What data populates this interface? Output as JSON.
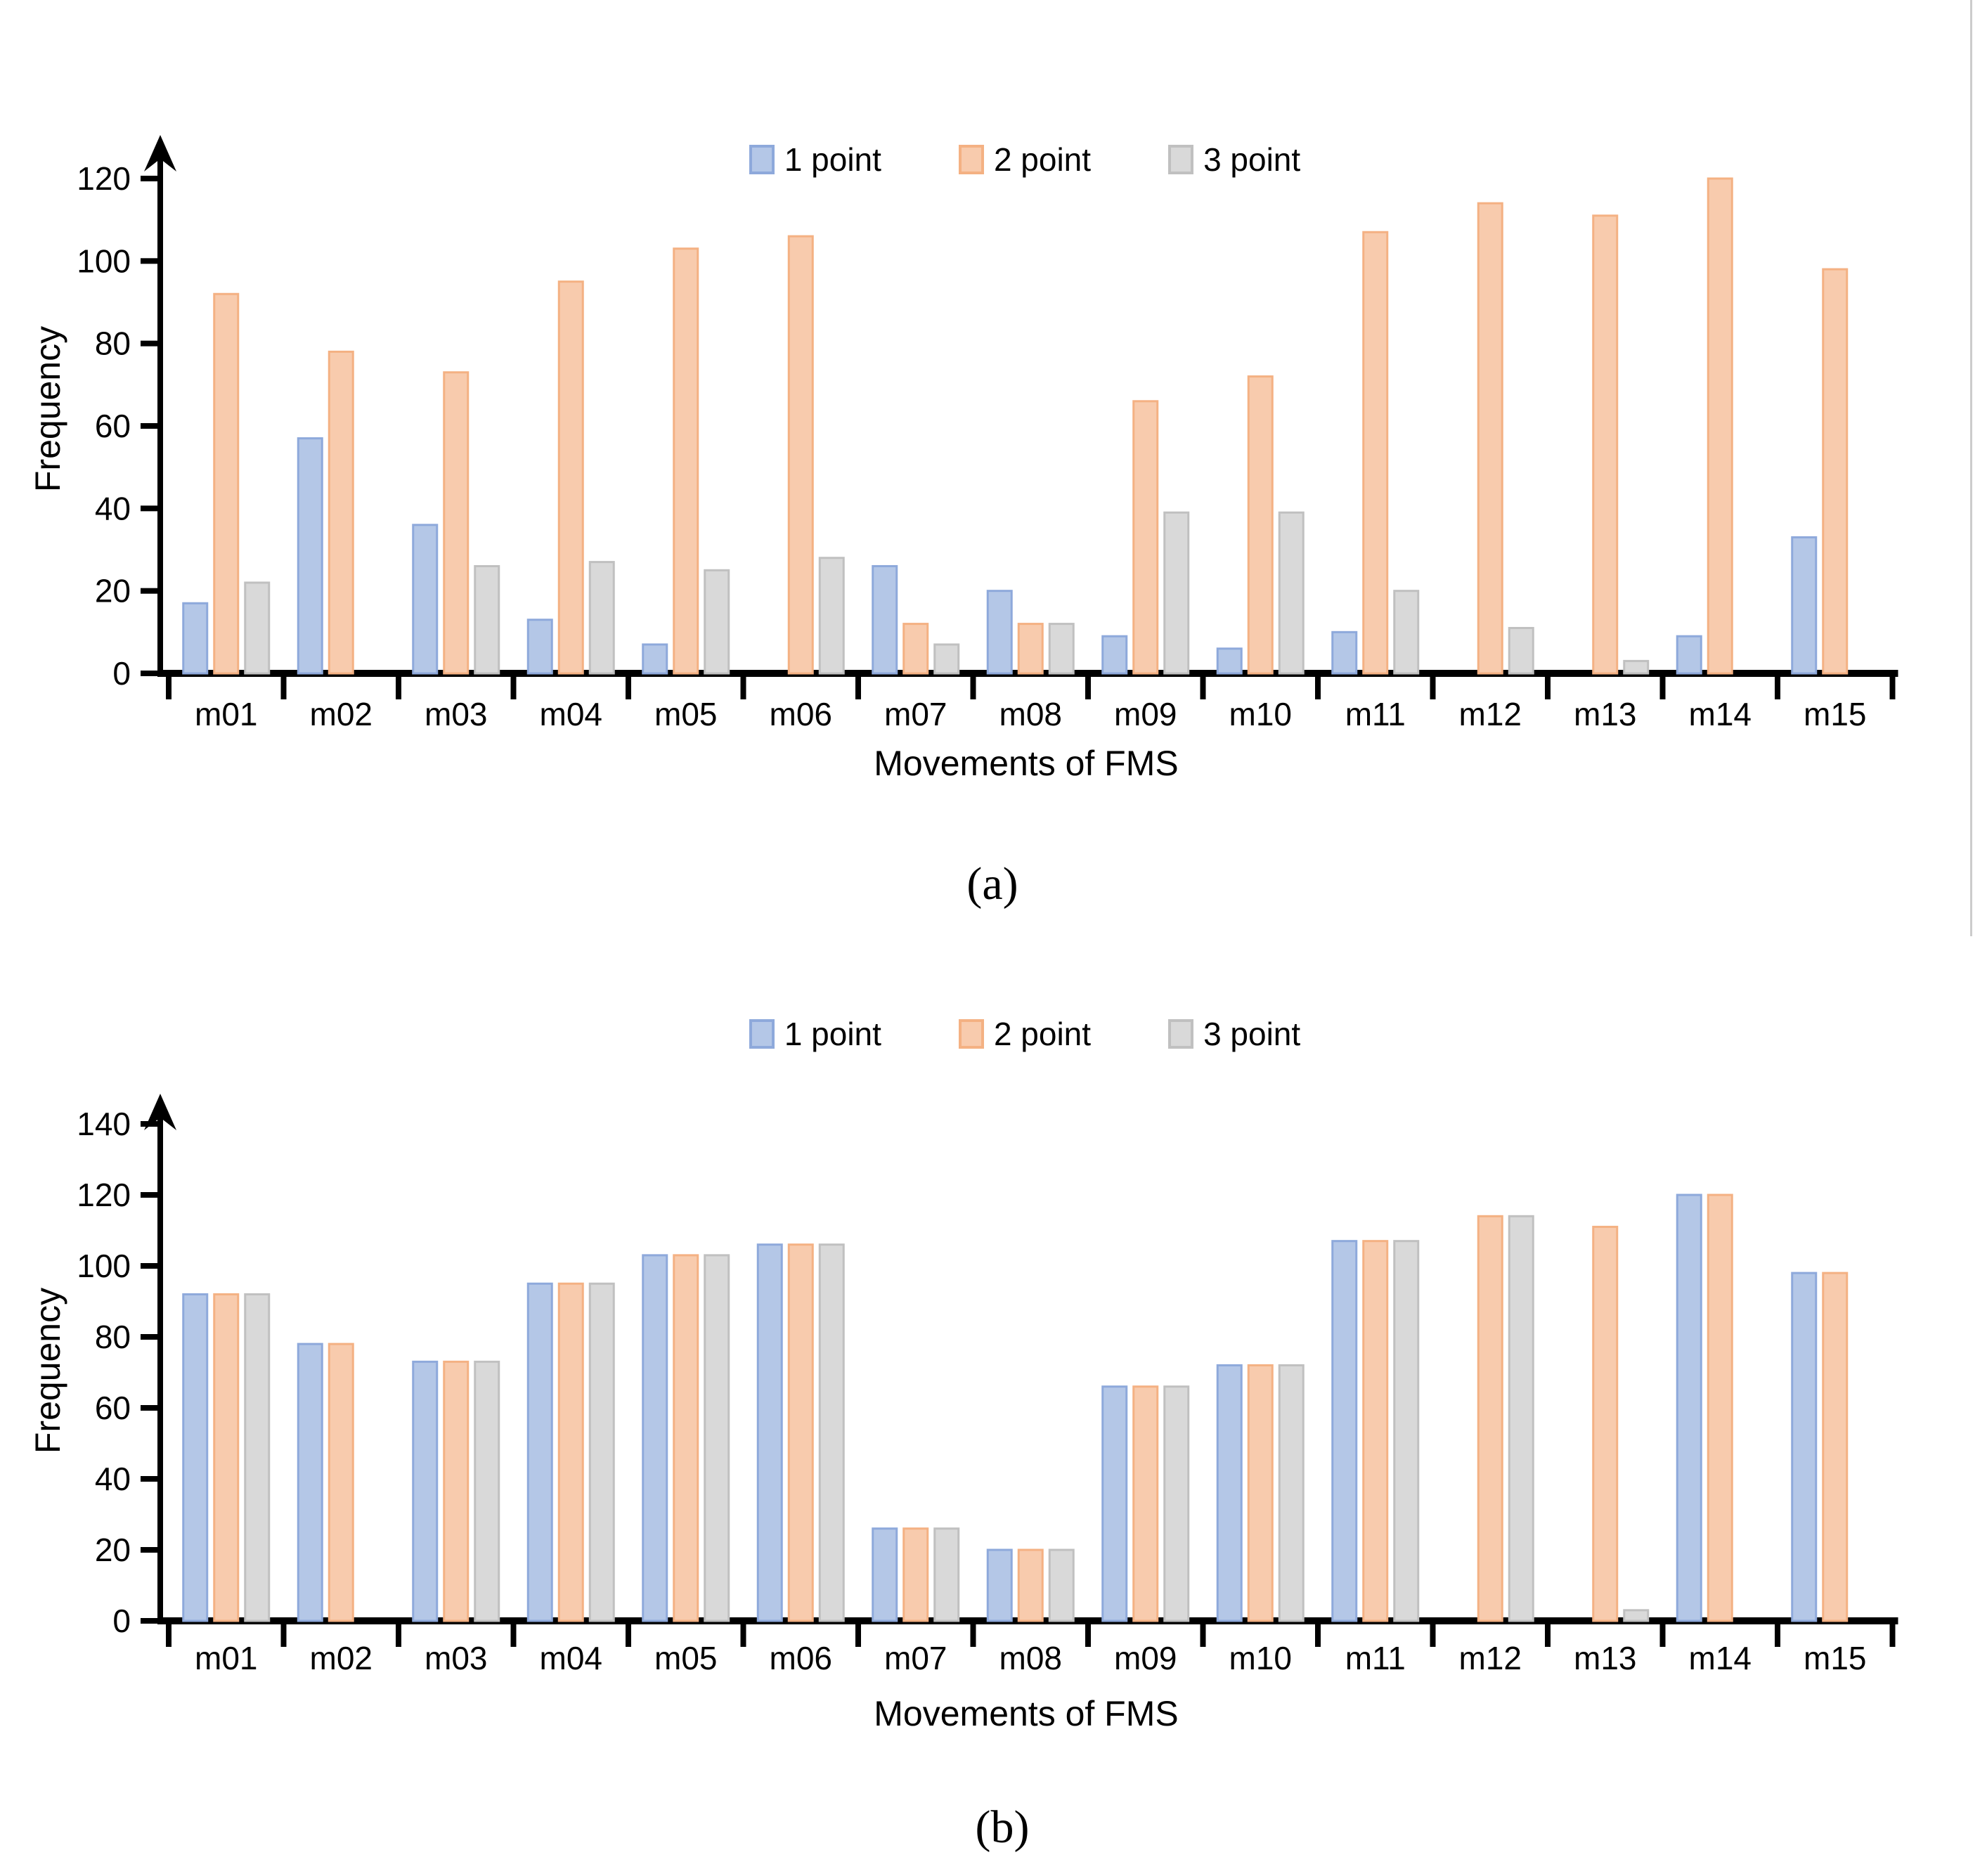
{
  "page": {
    "background": "#ffffff"
  },
  "colors": {
    "series_fills": [
      "#b4c7e7",
      "#f8cbad",
      "#d9d9d9"
    ],
    "series_strokes": [
      "#8ea9db",
      "#f4b183",
      "#c0c0c0"
    ],
    "axis": "#000000",
    "text": "#000000",
    "edge_line": "#cccccc"
  },
  "panel_a": {
    "label": "(a)"
  },
  "panel_b": {
    "label": "(b)"
  },
  "chart_data": [
    {
      "id": "a",
      "type": "bar",
      "title": "",
      "xlabel": "Movements of FMS",
      "ylabel": "Frequency",
      "ylim": [
        0,
        120
      ],
      "ytick_step": 20,
      "yticks": [
        0,
        20,
        40,
        60,
        80,
        100,
        120
      ],
      "grid": false,
      "legend_position": "top-center",
      "categories": [
        "m01",
        "m02",
        "m03",
        "m04",
        "m05",
        "m06",
        "m07",
        "m08",
        "m09",
        "m10",
        "m11",
        "m12",
        "m13",
        "m14",
        "m15"
      ],
      "series": [
        {
          "name": "1 point",
          "values": [
            17,
            57,
            36,
            13,
            7,
            0,
            26,
            20,
            9,
            6,
            10,
            0,
            0,
            9,
            33
          ]
        },
        {
          "name": "2 point",
          "values": [
            92,
            78,
            73,
            95,
            103,
            106,
            12,
            12,
            66,
            72,
            107,
            114,
            111,
            120,
            98
          ]
        },
        {
          "name": "3 point",
          "values": [
            22,
            0,
            26,
            27,
            25,
            28,
            7,
            12,
            39,
            39,
            20,
            11,
            3,
            0,
            0
          ]
        }
      ]
    },
    {
      "id": "b",
      "type": "bar",
      "title": "",
      "xlabel": "Movements of FMS",
      "ylabel": "Frequency",
      "ylim": [
        0,
        140
      ],
      "ytick_step": 20,
      "yticks": [
        0,
        20,
        40,
        60,
        80,
        100,
        120,
        140
      ],
      "grid": false,
      "legend_position": "top-center",
      "categories": [
        "m01",
        "m02",
        "m03",
        "m04",
        "m05",
        "m06",
        "m07",
        "m08",
        "m09",
        "m10",
        "m11",
        "m12",
        "m13",
        "m14",
        "m15"
      ],
      "series": [
        {
          "name": "1 point",
          "values": [
            92,
            78,
            73,
            95,
            103,
            106,
            26,
            20,
            66,
            72,
            107,
            0,
            0,
            120,
            98
          ]
        },
        {
          "name": "2 point",
          "values": [
            92,
            78,
            73,
            95,
            103,
            106,
            26,
            20,
            66,
            72,
            107,
            114,
            111,
            120,
            98
          ]
        },
        {
          "name": "3 point",
          "values": [
            92,
            0,
            73,
            95,
            103,
            106,
            26,
            20,
            66,
            72,
            107,
            114,
            3,
            0,
            0
          ]
        }
      ]
    }
  ]
}
